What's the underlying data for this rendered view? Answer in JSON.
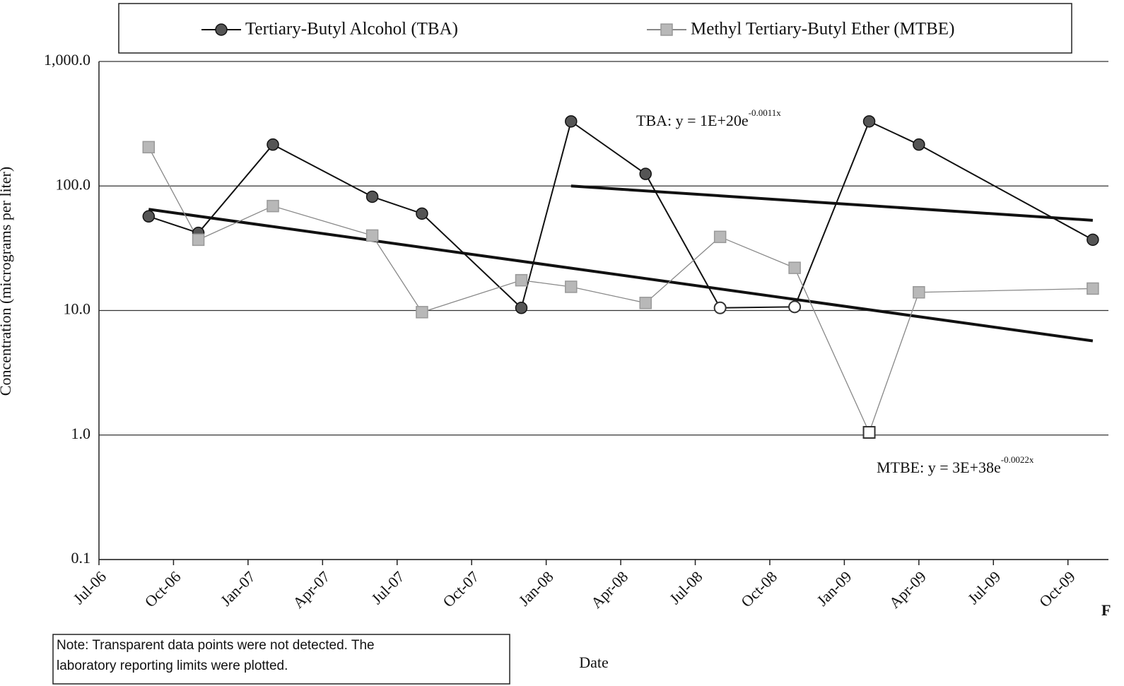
{
  "chart_data": {
    "type": "line",
    "x": [
      "2006-09",
      "2006-11",
      "2007-02",
      "2007-06",
      "2007-08",
      "2007-12",
      "2008-02",
      "2008-05",
      "2008-08",
      "2008-11",
      "2009-02",
      "2009-04",
      "2009-11"
    ],
    "series": [
      {
        "name": "Tertiary-Butyl Alcohol (TBA)",
        "color": "#555555",
        "line_color": "#111111",
        "marker": "circle",
        "values": [
          57,
          42,
          215,
          82,
          60,
          10.5,
          330,
          125,
          10.5,
          10.7,
          330,
          215,
          37
        ],
        "not_detected": [
          false,
          false,
          false,
          false,
          false,
          false,
          false,
          false,
          true,
          true,
          false,
          false,
          false
        ]
      },
      {
        "name": "Methyl Tertiary-Butyl Ether (MTBE)",
        "color": "#b8b8b8",
        "line_color": "#888888",
        "marker": "square",
        "values": [
          205,
          37,
          69,
          40,
          9.7,
          17.5,
          15.5,
          11.5,
          39,
          22,
          1.05,
          14,
          15
        ],
        "not_detected": [
          false,
          false,
          false,
          false,
          false,
          false,
          false,
          false,
          false,
          false,
          true,
          false,
          false
        ]
      }
    ],
    "trendlines": [
      {
        "label": "TBA:  y = 1E+20e",
        "exponent": "-0.0011x",
        "x": [
          "2008-02",
          "2009-11"
        ],
        "values": [
          100,
          53
        ]
      },
      {
        "label": "MTBE:  y = 3E+38e",
        "exponent": "-0.0022x",
        "x": [
          "2006-09",
          "2009-11"
        ],
        "values": [
          65,
          5.7
        ]
      }
    ],
    "ylabel": "Concentration (micrograms per liter)",
    "xlabel": "Date",
    "log_y": true,
    "ylim": [
      0.1,
      1000
    ],
    "yticks": [
      {
        "value": 0.1,
        "label": "0.1"
      },
      {
        "value": 1,
        "label": "1.0"
      },
      {
        "value": 10,
        "label": "10.0"
      },
      {
        "value": 100,
        "label": "100.0"
      },
      {
        "value": 1000,
        "label": "1,000.0"
      }
    ],
    "xlim": [
      "2006-07",
      "2009-12"
    ],
    "xticks": [
      {
        "value": "2006-07",
        "label": "Jul-06"
      },
      {
        "value": "2006-10",
        "label": "Oct-06"
      },
      {
        "value": "2007-01",
        "label": "Jan-07"
      },
      {
        "value": "2007-04",
        "label": "Apr-07"
      },
      {
        "value": "2007-07",
        "label": "Jul-07"
      },
      {
        "value": "2007-10",
        "label": "Oct-07"
      },
      {
        "value": "2008-01",
        "label": "Jan-08"
      },
      {
        "value": "2008-04",
        "label": "Apr-08"
      },
      {
        "value": "2008-07",
        "label": "Jul-08"
      },
      {
        "value": "2008-10",
        "label": "Oct-08"
      },
      {
        "value": "2009-01",
        "label": "Jan-09"
      },
      {
        "value": "2009-04",
        "label": "Apr-09"
      },
      {
        "value": "2009-07",
        "label": "Jul-09"
      },
      {
        "value": "2009-10",
        "label": "Oct-09"
      }
    ],
    "grid": true,
    "legend": "top",
    "note": [
      "Note: Transparent data points were not detected.  The",
      "laboratory reporting limits were plotted."
    ],
    "annotations": [
      "F"
    ]
  }
}
